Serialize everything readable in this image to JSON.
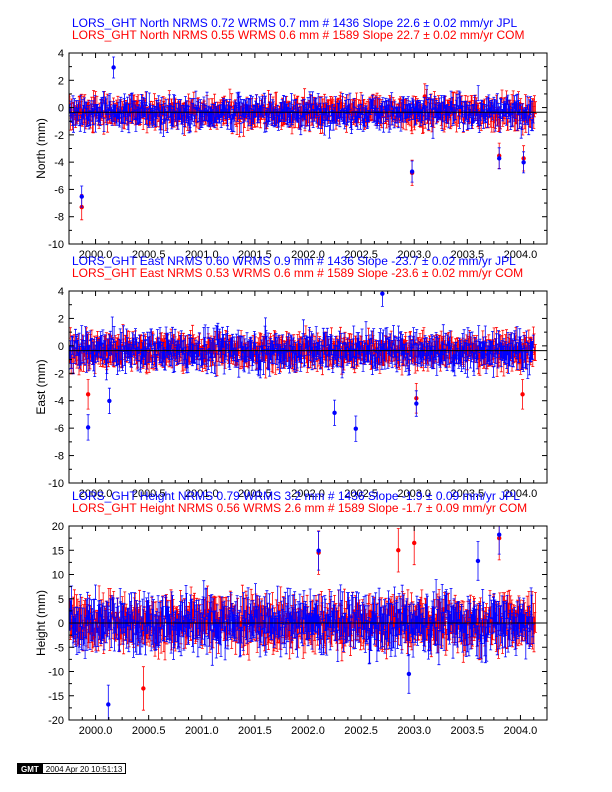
{
  "chart_data": [
    {
      "type": "scatter",
      "headers": [
        {
          "text": "LORS_GHT North NRMS 0.72 WRMS  0.7 mm # 1436 Slope   22.6 ±  0.02 mm/yr JPL",
          "color": "#0000ff"
        },
        {
          "text": "LORS_GHT North NRMS 0.55 WRMS  0.6 mm # 1589 Slope   22.7 ±  0.02 mm/yr COM",
          "color": "#ff0000"
        }
      ],
      "ylabel": "North (mm)",
      "xlim": [
        1999.75,
        2004.25
      ],
      "ylim": [
        -10,
        4.5
      ],
      "yticks": [
        "4",
        "2",
        "0",
        "-2",
        "-4",
        "-6",
        "-8",
        "-10"
      ],
      "xticks": [
        "2000.0",
        "2000.5",
        "2001.0",
        "2001.5",
        "2002.0",
        "2002.5",
        "2003.0",
        "2003.5",
        "2004.0"
      ],
      "series": [
        {
          "name": "JPL",
          "color": "#0000ff",
          "n": 1436,
          "wrms": 0.7,
          "sigma": 0.5,
          "x_range": [
            1999.75,
            2004.12
          ],
          "outliers": [
            [
              1999.87,
              -6.4
            ],
            [
              2002.98,
              -4.5
            ],
            [
              2003.8,
              -3.5
            ],
            [
              2004.03,
              -3.8
            ],
            [
              2000.17,
              3.4
            ]
          ]
        },
        {
          "name": "COM",
          "color": "#ff0000",
          "n": 1589,
          "wrms": 0.6,
          "sigma": 0.6,
          "x_range": [
            1999.75,
            2004.14
          ],
          "outliers": [
            [
              1999.87,
              -7.2
            ],
            [
              2002.98,
              -4.6
            ],
            [
              2003.8,
              -3.3
            ],
            [
              2003.1,
              1.2
            ],
            [
              2004.03,
              -3.5
            ]
          ]
        }
      ]
    },
    {
      "type": "scatter",
      "headers": [
        {
          "text": "LORS_GHT East NRMS 0.60 WRMS  0.9 mm # 1436 Slope  -23.7 ±  0.02 mm/yr JPL",
          "color": "#0000ff"
        },
        {
          "text": "LORS_GHT East NRMS 0.53 WRMS  0.6 mm # 1589 Slope  -23.6 ±  0.02 mm/yr COM",
          "color": "#ff0000"
        }
      ],
      "ylabel": "East (mm)",
      "xlim": [
        1999.75,
        2004.25
      ],
      "ylim": [
        -10,
        4.5
      ],
      "yticks": [
        "4",
        "2",
        "0",
        "-2",
        "-4",
        "-6",
        "-8",
        "-10"
      ],
      "xticks": [
        "2000.0",
        "2000.5",
        "2001.0",
        "2001.5",
        "2002.0",
        "2002.5",
        "2003.0",
        "2003.5",
        "2004.0"
      ],
      "series": [
        {
          "name": "JPL",
          "color": "#0000ff",
          "n": 1436,
          "wrms": 0.9,
          "sigma": 0.6,
          "x_range": [
            1999.75,
            2004.12
          ],
          "outliers": [
            [
              1999.93,
              -5.8
            ],
            [
              2000.13,
              -3.8
            ],
            [
              2002.25,
              -4.7
            ],
            [
              2002.45,
              -5.9
            ],
            [
              2003.02,
              -4.0
            ],
            [
              2002.7,
              4.3
            ]
          ]
        },
        {
          "name": "COM",
          "color": "#ff0000",
          "n": 1589,
          "wrms": 0.6,
          "sigma": 0.7,
          "x_range": [
            1999.75,
            2004.14
          ],
          "outliers": [
            [
              1999.93,
              -3.3
            ],
            [
              2004.02,
              -3.3
            ],
            [
              2003.02,
              -3.6
            ]
          ]
        }
      ]
    },
    {
      "type": "scatter",
      "headers": [
        {
          "text": "LORS_GHT Height NRMS 0.79 WRMS  3.2 mm # 1436 Slope   -1.9 ±  0.09 mm/yr JPL",
          "color": "#0000ff"
        },
        {
          "text": "LORS_GHT Height NRMS 0.56 WRMS  2.6 mm # 1589 Slope   -1.7 ±  0.09 mm/yr COM",
          "color": "#ff0000"
        }
      ],
      "ylabel": "Height (mm)",
      "xlim": [
        1999.75,
        2004.25
      ],
      "ylim": [
        -20,
        20
      ],
      "yticks": [
        "20",
        "15",
        "10",
        "5",
        "0",
        "-5",
        "-10",
        "-15",
        "-20"
      ],
      "xticks": [
        "2000.0",
        "2000.5",
        "2001.0",
        "2001.5",
        "2002.0",
        "2002.5",
        "2003.0",
        "2003.5",
        "2004.0"
      ],
      "series": [
        {
          "name": "JPL",
          "color": "#0000ff",
          "n": 1436,
          "wrms": 3.2,
          "sigma": 2.5,
          "x_range": [
            1999.75,
            2004.12
          ],
          "outliers": [
            [
              2000.12,
              -16.8
            ],
            [
              2002.1,
              14.9
            ],
            [
              2003.8,
              18.2
            ],
            [
              2002.95,
              -10.5
            ],
            [
              2003.6,
              12.8
            ]
          ]
        },
        {
          "name": "COM",
          "color": "#ff0000",
          "n": 1589,
          "wrms": 2.6,
          "sigma": 2.8,
          "x_range": [
            1999.75,
            2004.14
          ],
          "outliers": [
            [
              2002.1,
              14.5
            ],
            [
              2003.8,
              17.5
            ],
            [
              2003.0,
              16.5
            ],
            [
              2002.85,
              15.0
            ],
            [
              2000.45,
              -13.5
            ]
          ]
        }
      ]
    }
  ],
  "footer": {
    "logo": "GMT",
    "timestamp": "2004 Apr 20 10:51:13"
  }
}
